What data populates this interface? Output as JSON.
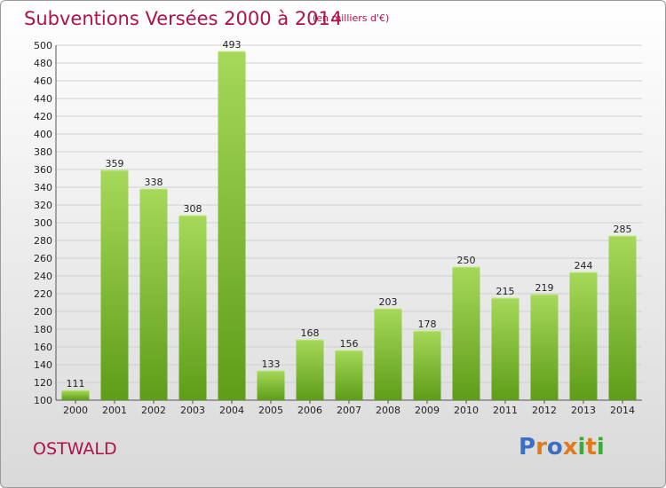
{
  "title": "Subventions Versées 2000 à 2014",
  "unit_note": "(en milliers d'€)",
  "city": "OSTWALD",
  "logo": {
    "letters": [
      "P",
      "r",
      "o",
      "x",
      "i",
      "t",
      "i"
    ],
    "colors": [
      "#3a6fc4",
      "#e07b1a",
      "#3a6fc4",
      "#e07b1a",
      "#3aaa3a",
      "#e07b1a",
      "#3aaa3a"
    ]
  },
  "colors": {
    "title": "#b0114b",
    "bar_light": "#a6d85a",
    "bar_dark": "#5e9d18"
  },
  "chart_data": {
    "type": "bar",
    "title": "Subventions Versées 2000 à 2014",
    "subtitle": "(en milliers d'€)",
    "xlabel": "",
    "ylabel": "",
    "categories": [
      "2000",
      "2001",
      "2002",
      "2003",
      "2004",
      "2005",
      "2006",
      "2007",
      "2008",
      "2009",
      "2010",
      "2011",
      "2012",
      "2013",
      "2014"
    ],
    "values": [
      111,
      359,
      338,
      308,
      493,
      133,
      168,
      156,
      203,
      178,
      250,
      215,
      219,
      244,
      285
    ],
    "ylim": [
      100,
      500
    ],
    "yticks": [
      100,
      120,
      140,
      160,
      180,
      200,
      220,
      240,
      260,
      280,
      300,
      320,
      340,
      360,
      380,
      400,
      420,
      440,
      460,
      480,
      500
    ],
    "grid": true
  }
}
